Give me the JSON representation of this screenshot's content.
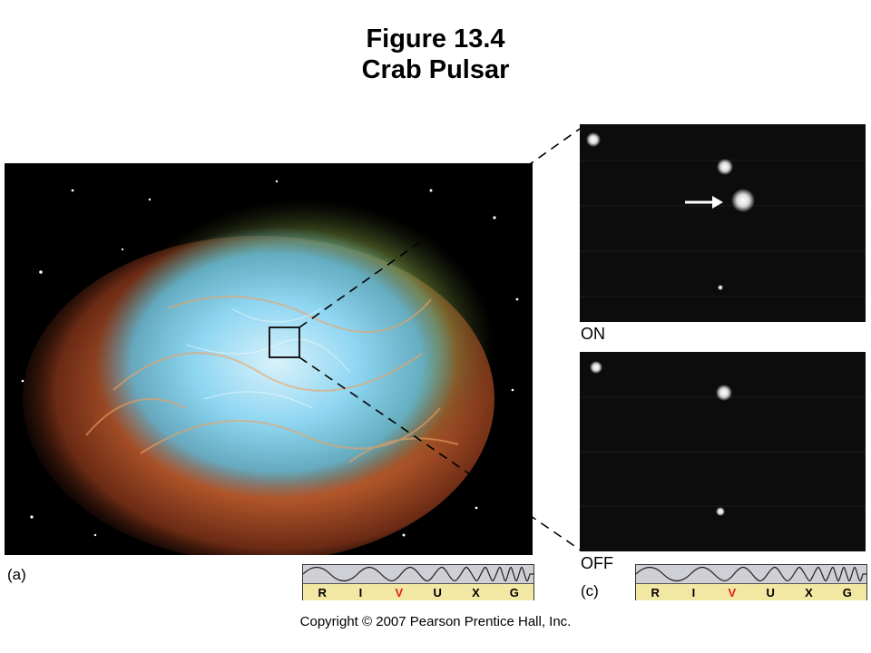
{
  "title": {
    "line1": "Figure 13.4",
    "line2": "Crab Pulsar"
  },
  "panels": {
    "a_label": "(a)",
    "on_label": "ON",
    "off_label": "OFF",
    "c_label": "(c)"
  },
  "spectrum": {
    "bands": [
      "R",
      "I",
      "V",
      "U",
      "X",
      "G"
    ],
    "active_band": "V",
    "active_color": "#e02020"
  },
  "copyright": "Copyright © 2007 Pearson Prentice Hall, Inc.",
  "colors": {
    "nebula_core": "#7fd0f0",
    "nebula_filaments": "#e07a3a",
    "nebula_outer": "#6f8a3a",
    "background": "#000000"
  }
}
